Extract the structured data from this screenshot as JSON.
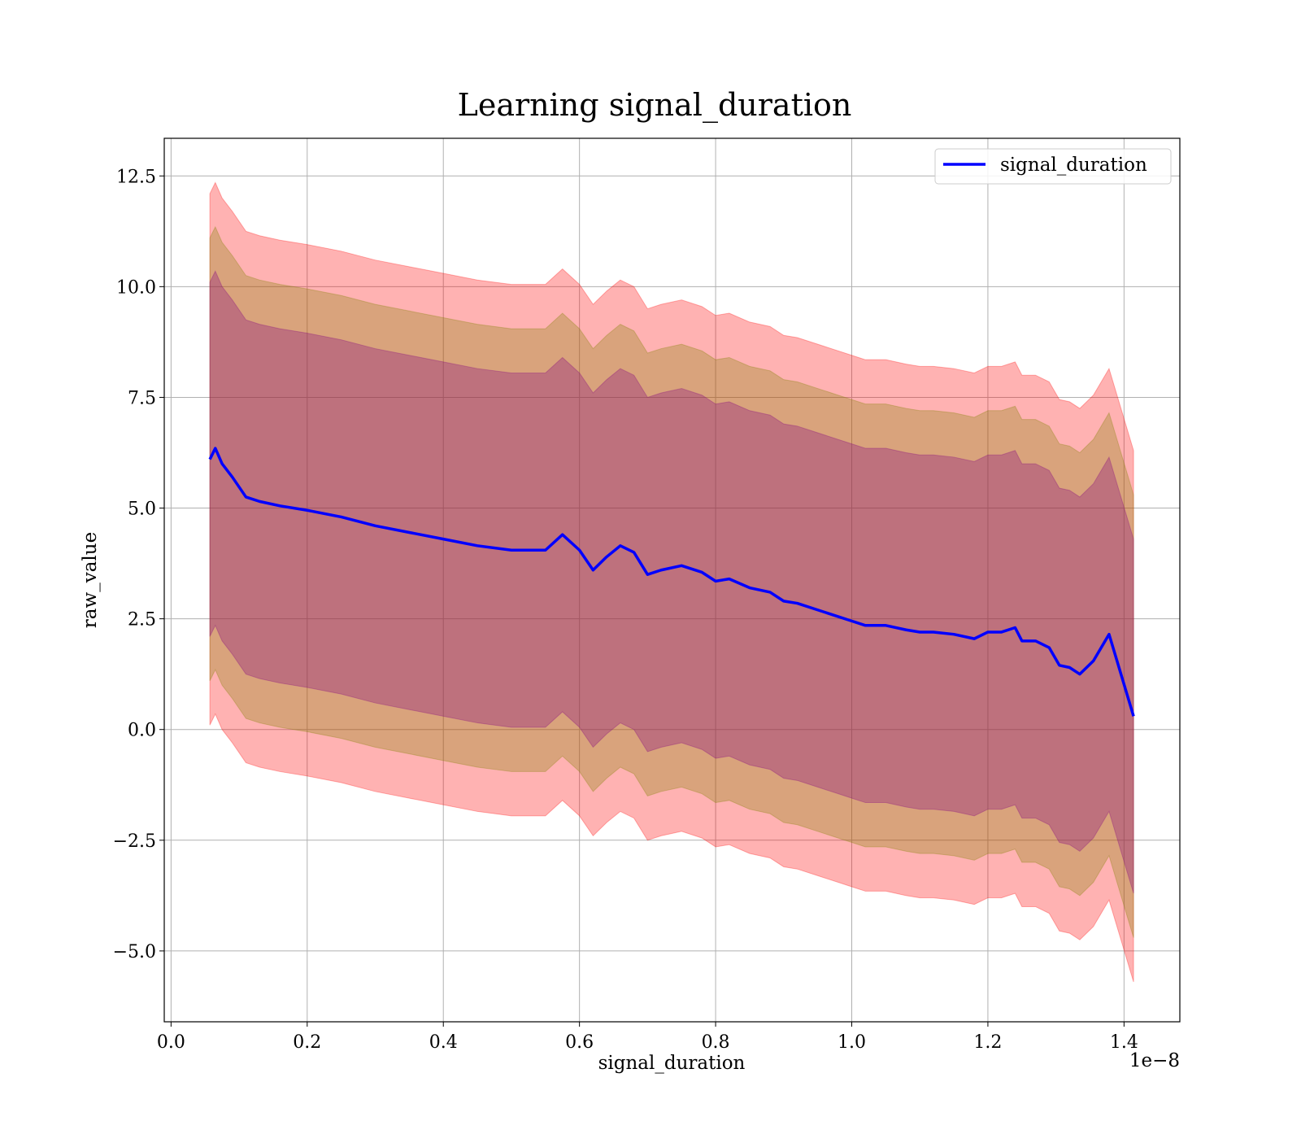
{
  "chart_data": {
    "type": "line",
    "title": "Learning signal_duration",
    "xlabel": "signal_duration",
    "ylabel": "raw_value",
    "x_offset_label": "1e−8",
    "x_scale_exponent": -8,
    "xlim": [
      -1e-10,
      1.482e-08
    ],
    "ylim": [
      -6.6,
      13.35
    ],
    "x_ticks": [
      0.0,
      2e-09,
      4e-09,
      6e-09,
      8e-09,
      1e-08,
      1.2e-08,
      1.4e-08
    ],
    "x_tick_labels": [
      "0.0",
      "0.2",
      "0.4",
      "0.6",
      "0.8",
      "1.0",
      "1.2",
      "1.4"
    ],
    "y_ticks": [
      -5.0,
      -2.5,
      0.0,
      2.5,
      5.0,
      7.5,
      10.0,
      12.5
    ],
    "y_tick_labels": [
      "−5.0",
      "−2.5",
      "0.0",
      "2.5",
      "5.0",
      "7.5",
      "10.0",
      "12.5"
    ],
    "grid": true,
    "legend": {
      "position": "top-right",
      "entries": [
        "signal_duration"
      ]
    },
    "colors": {
      "line": "#0000ff",
      "band_outer": "#ff0000",
      "band_middle": "#808000",
      "band_inner": "#800080"
    },
    "series": [
      {
        "name": "signal_duration",
        "x": [
          5.7e-10,
          6.5e-10,
          7.5e-10,
          9e-10,
          1.1e-09,
          1.3e-09,
          1.6e-09,
          2e-09,
          2.5e-09,
          3e-09,
          3.5e-09,
          4e-09,
          4.5e-09,
          5e-09,
          5.5e-09,
          5.75e-09,
          6e-09,
          6.2e-09,
          6.4e-09,
          6.6e-09,
          6.8e-09,
          7e-09,
          7.2e-09,
          7.5e-09,
          7.8e-09,
          8e-09,
          8.2e-09,
          8.5e-09,
          8.8e-09,
          9e-09,
          9.2e-09,
          9.5e-09,
          9.8e-09,
          1e-08,
          1.02e-08,
          1.05e-08,
          1.08e-08,
          1.1e-08,
          1.12e-08,
          1.15e-08,
          1.18e-08,
          1.2e-08,
          1.22e-08,
          1.24e-08,
          1.25e-08,
          1.27e-08,
          1.29e-08,
          1.305e-08,
          1.32e-08,
          1.335e-08,
          1.355e-08,
          1.378e-08,
          1.414e-08
        ],
        "y": [
          6.1,
          6.35,
          6.0,
          5.7,
          5.25,
          5.15,
          5.05,
          4.95,
          4.8,
          4.6,
          4.45,
          4.3,
          4.15,
          4.05,
          4.05,
          4.4,
          4.05,
          3.6,
          3.9,
          4.15,
          4.0,
          3.5,
          3.6,
          3.7,
          3.55,
          3.35,
          3.4,
          3.2,
          3.1,
          2.9,
          2.85,
          2.7,
          2.55,
          2.45,
          2.35,
          2.35,
          2.25,
          2.2,
          2.2,
          2.15,
          2.05,
          2.2,
          2.2,
          2.3,
          2.0,
          2.0,
          1.85,
          1.45,
          1.4,
          1.25,
          1.55,
          2.15,
          0.3
        ]
      }
    ],
    "bands": [
      {
        "level": "outer",
        "upper_offset": 6.0,
        "lower_offset": -6.0
      },
      {
        "level": "middle",
        "upper_offset": 5.0,
        "lower_offset": -5.0
      },
      {
        "level": "inner",
        "upper_offset": 4.0,
        "lower_offset": -4.0
      }
    ]
  }
}
